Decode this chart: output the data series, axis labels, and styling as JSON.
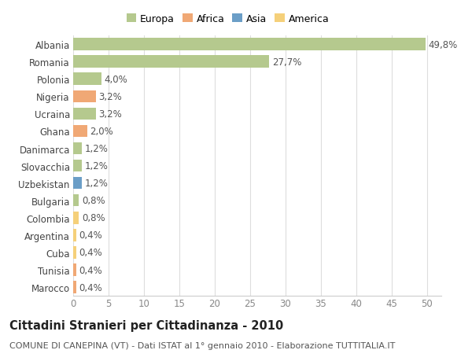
{
  "countries": [
    "Albania",
    "Romania",
    "Polonia",
    "Nigeria",
    "Ucraina",
    "Ghana",
    "Danimarca",
    "Slovacchia",
    "Uzbekistan",
    "Bulgaria",
    "Colombia",
    "Argentina",
    "Cuba",
    "Tunisia",
    "Marocco"
  ],
  "values": [
    49.8,
    27.7,
    4.0,
    3.2,
    3.2,
    2.0,
    1.2,
    1.2,
    1.2,
    0.8,
    0.8,
    0.4,
    0.4,
    0.4,
    0.4
  ],
  "labels": [
    "49,8%",
    "27,7%",
    "4,0%",
    "3,2%",
    "3,2%",
    "2,0%",
    "1,2%",
    "1,2%",
    "1,2%",
    "0,8%",
    "0,8%",
    "0,4%",
    "0,4%",
    "0,4%",
    "0,4%"
  ],
  "colors": [
    "#b5c98e",
    "#b5c98e",
    "#b5c98e",
    "#f0a875",
    "#b5c98e",
    "#f0a875",
    "#b5c98e",
    "#b5c98e",
    "#6b9ec7",
    "#b5c98e",
    "#f5d07a",
    "#f5d07a",
    "#f5d07a",
    "#f0a875",
    "#f0a875"
  ],
  "continent_colors": {
    "Europa": "#b5c98e",
    "Africa": "#f0a875",
    "Asia": "#6b9ec7",
    "America": "#f5d07a"
  },
  "xlim": [
    0,
    52
  ],
  "xticks": [
    0,
    5,
    10,
    15,
    20,
    25,
    30,
    35,
    40,
    45,
    50
  ],
  "title": "Cittadini Stranieri per Cittadinanza - 2010",
  "subtitle": "COMUNE DI CANEPINA (VT) - Dati ISTAT al 1° gennaio 2010 - Elaborazione TUTTITALIA.IT",
  "bg_color": "#ffffff",
  "grid_color": "#dddddd",
  "bar_height": 0.7,
  "label_fontsize": 8.5,
  "tick_fontsize": 8.5,
  "title_fontsize": 10.5,
  "subtitle_fontsize": 8.0
}
